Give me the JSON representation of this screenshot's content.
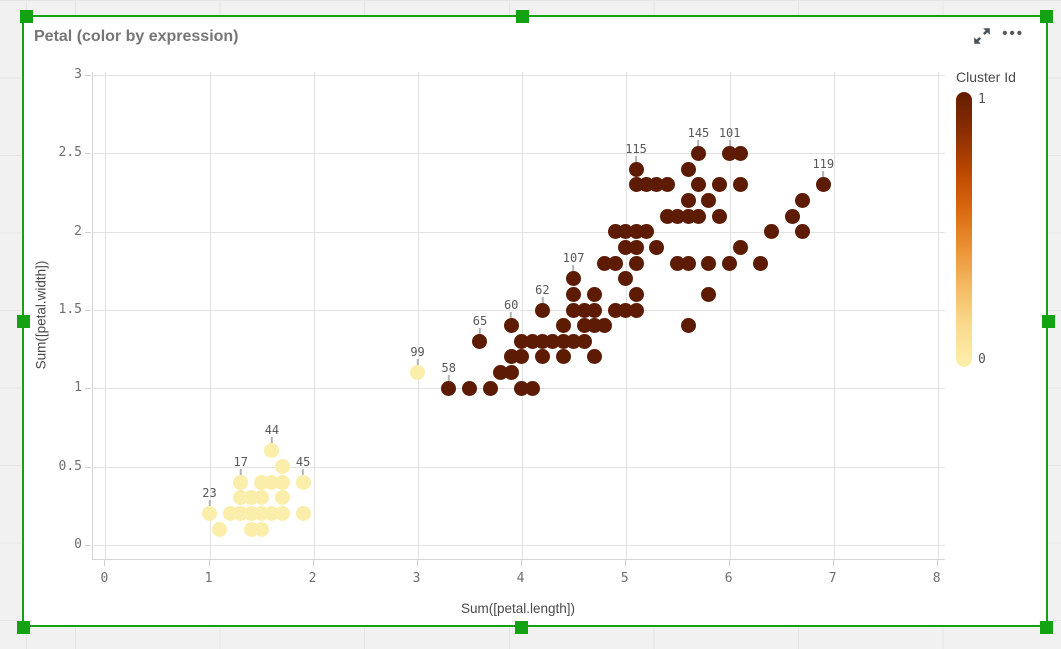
{
  "title": "Petal (color by expression)",
  "toolbar": {
    "more_label": "•••"
  },
  "legend": {
    "title": "Cluster Id",
    "max_label": "1",
    "min_label": "0"
  },
  "colors": {
    "selection_green": "#12a212",
    "cluster_0": "#fbeeab",
    "cluster_1": "#5d1b04",
    "gridline": "#e2e2e2",
    "axis_line": "#d5d5d5",
    "legend_gradient": [
      "#641d00",
      "#8a2e00",
      "#b94700",
      "#d96a10",
      "#eb9336",
      "#f4bc66",
      "#fadc90",
      "#fdf0ac"
    ]
  },
  "chart_data": {
    "type": "scatter",
    "title": "Petal (color by expression)",
    "xlabel": "Sum([petal.length])",
    "ylabel": "Sum([petal.width])",
    "color_by": "Cluster Id",
    "xlim": [
      -0.12,
      8.07
    ],
    "ylim": [
      -0.09,
      3.02
    ],
    "x_ticks": [
      0,
      1,
      2,
      3,
      4,
      5,
      6,
      7,
      8
    ],
    "y_ticks": [
      0,
      0.5,
      1,
      1.5,
      2,
      2.5,
      3
    ],
    "grid": true,
    "legend_position": "right",
    "points": [
      {
        "x": 1.0,
        "y": 0.2,
        "c": 0,
        "label": "23"
      },
      {
        "x": 1.1,
        "y": 0.1,
        "c": 0
      },
      {
        "x": 1.2,
        "y": 0.2,
        "c": 0
      },
      {
        "x": 1.3,
        "y": 0.2,
        "c": 0
      },
      {
        "x": 1.3,
        "y": 0.3,
        "c": 0
      },
      {
        "x": 1.3,
        "y": 0.4,
        "c": 0,
        "label": "17"
      },
      {
        "x": 1.4,
        "y": 0.1,
        "c": 0
      },
      {
        "x": 1.4,
        "y": 0.2,
        "c": 0
      },
      {
        "x": 1.4,
        "y": 0.3,
        "c": 0
      },
      {
        "x": 1.5,
        "y": 0.1,
        "c": 0
      },
      {
        "x": 1.5,
        "y": 0.2,
        "c": 0
      },
      {
        "x": 1.5,
        "y": 0.3,
        "c": 0
      },
      {
        "x": 1.5,
        "y": 0.4,
        "c": 0
      },
      {
        "x": 1.6,
        "y": 0.2,
        "c": 0
      },
      {
        "x": 1.6,
        "y": 0.4,
        "c": 0
      },
      {
        "x": 1.6,
        "y": 0.6,
        "c": 0,
        "label": "44"
      },
      {
        "x": 1.7,
        "y": 0.2,
        "c": 0
      },
      {
        "x": 1.7,
        "y": 0.3,
        "c": 0
      },
      {
        "x": 1.7,
        "y": 0.4,
        "c": 0
      },
      {
        "x": 1.7,
        "y": 0.5,
        "c": 0
      },
      {
        "x": 1.9,
        "y": 0.2,
        "c": 0
      },
      {
        "x": 1.9,
        "y": 0.4,
        "c": 0,
        "label": "45"
      },
      {
        "x": 3.0,
        "y": 1.1,
        "c": 0,
        "label": "99"
      },
      {
        "x": 3.3,
        "y": 1.0,
        "c": 1,
        "label": "58"
      },
      {
        "x": 3.5,
        "y": 1.0,
        "c": 1
      },
      {
        "x": 3.6,
        "y": 1.3,
        "c": 1,
        "label": "65"
      },
      {
        "x": 3.7,
        "y": 1.0,
        "c": 1
      },
      {
        "x": 3.8,
        "y": 1.1,
        "c": 1
      },
      {
        "x": 3.9,
        "y": 1.1,
        "c": 1
      },
      {
        "x": 3.9,
        "y": 1.2,
        "c": 1
      },
      {
        "x": 3.9,
        "y": 1.4,
        "c": 1,
        "label": "60"
      },
      {
        "x": 4.0,
        "y": 1.0,
        "c": 1
      },
      {
        "x": 4.0,
        "y": 1.2,
        "c": 1
      },
      {
        "x": 4.0,
        "y": 1.3,
        "c": 1
      },
      {
        "x": 4.1,
        "y": 1.0,
        "c": 1
      },
      {
        "x": 4.1,
        "y": 1.3,
        "c": 1
      },
      {
        "x": 4.2,
        "y": 1.2,
        "c": 1
      },
      {
        "x": 4.2,
        "y": 1.3,
        "c": 1
      },
      {
        "x": 4.2,
        "y": 1.5,
        "c": 1,
        "label": "62"
      },
      {
        "x": 4.3,
        "y": 1.3,
        "c": 1
      },
      {
        "x": 4.4,
        "y": 1.2,
        "c": 1
      },
      {
        "x": 4.4,
        "y": 1.3,
        "c": 1
      },
      {
        "x": 4.4,
        "y": 1.4,
        "c": 1
      },
      {
        "x": 4.5,
        "y": 1.3,
        "c": 1
      },
      {
        "x": 4.5,
        "y": 1.5,
        "c": 1
      },
      {
        "x": 4.5,
        "y": 1.6,
        "c": 1
      },
      {
        "x": 4.5,
        "y": 1.7,
        "c": 1,
        "label": "107"
      },
      {
        "x": 4.6,
        "y": 1.3,
        "c": 1
      },
      {
        "x": 4.6,
        "y": 1.4,
        "c": 1
      },
      {
        "x": 4.6,
        "y": 1.5,
        "c": 1
      },
      {
        "x": 4.7,
        "y": 1.2,
        "c": 1
      },
      {
        "x": 4.7,
        "y": 1.4,
        "c": 1
      },
      {
        "x": 4.7,
        "y": 1.5,
        "c": 1
      },
      {
        "x": 4.7,
        "y": 1.6,
        "c": 1
      },
      {
        "x": 4.8,
        "y": 1.4,
        "c": 1
      },
      {
        "x": 4.8,
        "y": 1.8,
        "c": 1
      },
      {
        "x": 4.9,
        "y": 1.5,
        "c": 1
      },
      {
        "x": 4.9,
        "y": 1.8,
        "c": 1
      },
      {
        "x": 4.9,
        "y": 2.0,
        "c": 1
      },
      {
        "x": 5.0,
        "y": 1.5,
        "c": 1
      },
      {
        "x": 5.0,
        "y": 1.7,
        "c": 1
      },
      {
        "x": 5.0,
        "y": 1.9,
        "c": 1
      },
      {
        "x": 5.0,
        "y": 2.0,
        "c": 1
      },
      {
        "x": 5.1,
        "y": 1.5,
        "c": 1
      },
      {
        "x": 5.1,
        "y": 1.6,
        "c": 1
      },
      {
        "x": 5.1,
        "y": 1.8,
        "c": 1
      },
      {
        "x": 5.1,
        "y": 1.9,
        "c": 1
      },
      {
        "x": 5.1,
        "y": 2.0,
        "c": 1
      },
      {
        "x": 5.1,
        "y": 2.3,
        "c": 1
      },
      {
        "x": 5.1,
        "y": 2.4,
        "c": 1,
        "label": "115"
      },
      {
        "x": 5.2,
        "y": 2.0,
        "c": 1
      },
      {
        "x": 5.2,
        "y": 2.3,
        "c": 1
      },
      {
        "x": 5.3,
        "y": 1.9,
        "c": 1
      },
      {
        "x": 5.3,
        "y": 2.3,
        "c": 1
      },
      {
        "x": 5.4,
        "y": 2.1,
        "c": 1
      },
      {
        "x": 5.4,
        "y": 2.3,
        "c": 1
      },
      {
        "x": 5.5,
        "y": 1.8,
        "c": 1
      },
      {
        "x": 5.5,
        "y": 2.1,
        "c": 1
      },
      {
        "x": 5.6,
        "y": 1.4,
        "c": 1
      },
      {
        "x": 5.6,
        "y": 1.8,
        "c": 1
      },
      {
        "x": 5.6,
        "y": 2.1,
        "c": 1
      },
      {
        "x": 5.6,
        "y": 2.2,
        "c": 1
      },
      {
        "x": 5.6,
        "y": 2.4,
        "c": 1
      },
      {
        "x": 5.7,
        "y": 2.1,
        "c": 1
      },
      {
        "x": 5.7,
        "y": 2.3,
        "c": 1
      },
      {
        "x": 5.7,
        "y": 2.5,
        "c": 1,
        "label": "145"
      },
      {
        "x": 5.8,
        "y": 1.6,
        "c": 1
      },
      {
        "x": 5.8,
        "y": 1.8,
        "c": 1
      },
      {
        "x": 5.8,
        "y": 2.2,
        "c": 1
      },
      {
        "x": 5.9,
        "y": 2.1,
        "c": 1
      },
      {
        "x": 5.9,
        "y": 2.3,
        "c": 1
      },
      {
        "x": 6.0,
        "y": 1.8,
        "c": 1
      },
      {
        "x": 6.0,
        "y": 2.5,
        "c": 1,
        "label": "101"
      },
      {
        "x": 6.1,
        "y": 1.9,
        "c": 1
      },
      {
        "x": 6.1,
        "y": 2.3,
        "c": 1
      },
      {
        "x": 6.1,
        "y": 2.5,
        "c": 1
      },
      {
        "x": 6.3,
        "y": 1.8,
        "c": 1
      },
      {
        "x": 6.4,
        "y": 2.0,
        "c": 1
      },
      {
        "x": 6.6,
        "y": 2.1,
        "c": 1
      },
      {
        "x": 6.7,
        "y": 2.0,
        "c": 1
      },
      {
        "x": 6.7,
        "y": 2.2,
        "c": 1
      },
      {
        "x": 6.9,
        "y": 2.3,
        "c": 1,
        "label": "119"
      }
    ]
  }
}
